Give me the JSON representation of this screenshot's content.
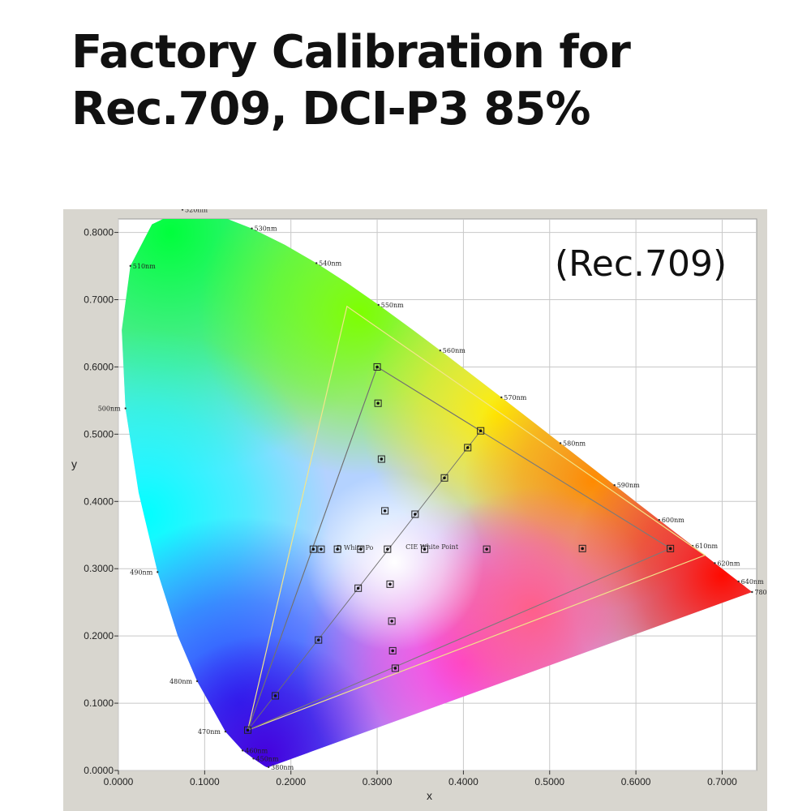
{
  "title_lines": [
    "Factory Calibration for",
    "Rec.709, DCI-P3 85%"
  ],
  "subtitle": "(Rec.709)",
  "chart_data": {
    "type": "scatter",
    "xlabel": "x",
    "ylabel": "y",
    "xlim": [
      0,
      0.74
    ],
    "ylim": [
      0,
      0.82
    ],
    "x_ticks": [
      "0.0000",
      "0.1000",
      "0.2000",
      "0.3000",
      "0.4000",
      "0.5000",
      "0.6000",
      "0.7000"
    ],
    "y_ticks": [
      "0.0000",
      "0.1000",
      "0.2000",
      "0.3000",
      "0.4000",
      "0.5000",
      "0.6000",
      "0.7000",
      "0.8000"
    ],
    "grid": true,
    "spectral_locus": [
      [
        0.1741,
        0.005
      ],
      [
        0.1738,
        0.0049
      ],
      [
        0.1733,
        0.0048
      ],
      [
        0.1726,
        0.0048
      ],
      [
        0.1714,
        0.0051
      ],
      [
        0.1689,
        0.0069
      ],
      [
        0.1644,
        0.0109
      ],
      [
        0.1566,
        0.0177
      ],
      [
        0.144,
        0.0297
      ],
      [
        0.1241,
        0.0578
      ],
      [
        0.0913,
        0.1327
      ],
      [
        0.0687,
        0.2007
      ],
      [
        0.0454,
        0.295
      ],
      [
        0.0235,
        0.4127
      ],
      [
        0.0082,
        0.5384
      ],
      [
        0.0039,
        0.6548
      ],
      [
        0.0139,
        0.7502
      ],
      [
        0.0389,
        0.812
      ],
      [
        0.0743,
        0.8338
      ],
      [
        0.1142,
        0.8262
      ],
      [
        0.1547,
        0.8059
      ],
      [
        0.1929,
        0.7816
      ],
      [
        0.2296,
        0.7543
      ],
      [
        0.2658,
        0.7243
      ],
      [
        0.3016,
        0.6923
      ],
      [
        0.3373,
        0.6589
      ],
      [
        0.3731,
        0.6245
      ],
      [
        0.4087,
        0.5896
      ],
      [
        0.4441,
        0.5547
      ],
      [
        0.4788,
        0.5202
      ],
      [
        0.5125,
        0.4866
      ],
      [
        0.5448,
        0.4544
      ],
      [
        0.5752,
        0.4242
      ],
      [
        0.6029,
        0.3965
      ],
      [
        0.627,
        0.3725
      ],
      [
        0.6482,
        0.3514
      ],
      [
        0.6658,
        0.334
      ],
      [
        0.6801,
        0.3197
      ],
      [
        0.6915,
        0.3083
      ],
      [
        0.7006,
        0.2993
      ],
      [
        0.7079,
        0.292
      ],
      [
        0.714,
        0.2859
      ],
      [
        0.719,
        0.2809
      ],
      [
        0.723,
        0.277
      ],
      [
        0.726,
        0.274
      ],
      [
        0.7283,
        0.2717
      ],
      [
        0.73,
        0.27
      ],
      [
        0.7311,
        0.2689
      ],
      [
        0.732,
        0.268
      ],
      [
        0.7347,
        0.2653
      ]
    ],
    "wavelength_labels": [
      {
        "label": "380nm",
        "x": 0.1741,
        "y": 0.005
      },
      {
        "label": "450nm",
        "x": 0.1566,
        "y": 0.0177
      },
      {
        "label": "460nm",
        "x": 0.144,
        "y": 0.0297
      },
      {
        "label": "470nm",
        "x": 0.1241,
        "y": 0.0578
      },
      {
        "label": "480nm",
        "x": 0.0913,
        "y": 0.1327
      },
      {
        "label": "490nm",
        "x": 0.0454,
        "y": 0.295
      },
      {
        "label": "500nm",
        "x": 0.0082,
        "y": 0.5384
      },
      {
        "label": "510nm",
        "x": 0.0139,
        "y": 0.7502
      },
      {
        "label": "520nm",
        "x": 0.0743,
        "y": 0.8338
      },
      {
        "label": "530nm",
        "x": 0.1547,
        "y": 0.8059
      },
      {
        "label": "540nm",
        "x": 0.2296,
        "y": 0.7543
      },
      {
        "label": "550nm",
        "x": 0.3016,
        "y": 0.6923
      },
      {
        "label": "560nm",
        "x": 0.3731,
        "y": 0.6245
      },
      {
        "label": "570nm",
        "x": 0.4441,
        "y": 0.5547
      },
      {
        "label": "580nm",
        "x": 0.5125,
        "y": 0.4866
      },
      {
        "label": "590nm",
        "x": 0.5752,
        "y": 0.4242
      },
      {
        "label": "600nm",
        "x": 0.627,
        "y": 0.3725
      },
      {
        "label": "610nm",
        "x": 0.6658,
        "y": 0.334
      },
      {
        "label": "620nm",
        "x": 0.6915,
        "y": 0.3083
      },
      {
        "label": "640nm",
        "x": 0.719,
        "y": 0.2809
      },
      {
        "label": "780nm",
        "x": 0.7347,
        "y": 0.2653
      }
    ],
    "outer_gamut_triangle": [
      [
        0.265,
        0.69
      ],
      [
        0.68,
        0.32
      ],
      [
        0.15,
        0.06
      ]
    ],
    "target_triangle": [
      [
        0.3,
        0.6
      ],
      [
        0.64,
        0.33
      ],
      [
        0.15,
        0.06
      ]
    ],
    "inner_triangle": [
      [
        0.3,
        0.6
      ],
      [
        0.42,
        0.505
      ],
      [
        0.15,
        0.06
      ]
    ],
    "point_labels": [
      {
        "text": "D White Po",
        "x": 0.253,
        "y": 0.328
      },
      {
        "text": "CIE White Point",
        "x": 0.333,
        "y": 0.329
      }
    ],
    "measurements": [
      {
        "x": 0.3,
        "y": 0.6
      },
      {
        "x": 0.301,
        "y": 0.546
      },
      {
        "x": 0.305,
        "y": 0.463
      },
      {
        "x": 0.309,
        "y": 0.386
      },
      {
        "x": 0.42,
        "y": 0.505
      },
      {
        "x": 0.405,
        "y": 0.48
      },
      {
        "x": 0.378,
        "y": 0.435
      },
      {
        "x": 0.344,
        "y": 0.381
      },
      {
        "x": 0.226,
        "y": 0.329
      },
      {
        "x": 0.235,
        "y": 0.329
      },
      {
        "x": 0.254,
        "y": 0.329
      },
      {
        "x": 0.281,
        "y": 0.329
      },
      {
        "x": 0.312,
        "y": 0.329
      },
      {
        "x": 0.355,
        "y": 0.329
      },
      {
        "x": 0.427,
        "y": 0.329
      },
      {
        "x": 0.538,
        "y": 0.33
      },
      {
        "x": 0.64,
        "y": 0.33
      },
      {
        "x": 0.315,
        "y": 0.277
      },
      {
        "x": 0.278,
        "y": 0.271
      },
      {
        "x": 0.317,
        "y": 0.222
      },
      {
        "x": 0.232,
        "y": 0.194
      },
      {
        "x": 0.318,
        "y": 0.178
      },
      {
        "x": 0.321,
        "y": 0.152
      },
      {
        "x": 0.182,
        "y": 0.111
      },
      {
        "x": 0.15,
        "y": 0.06
      }
    ]
  }
}
